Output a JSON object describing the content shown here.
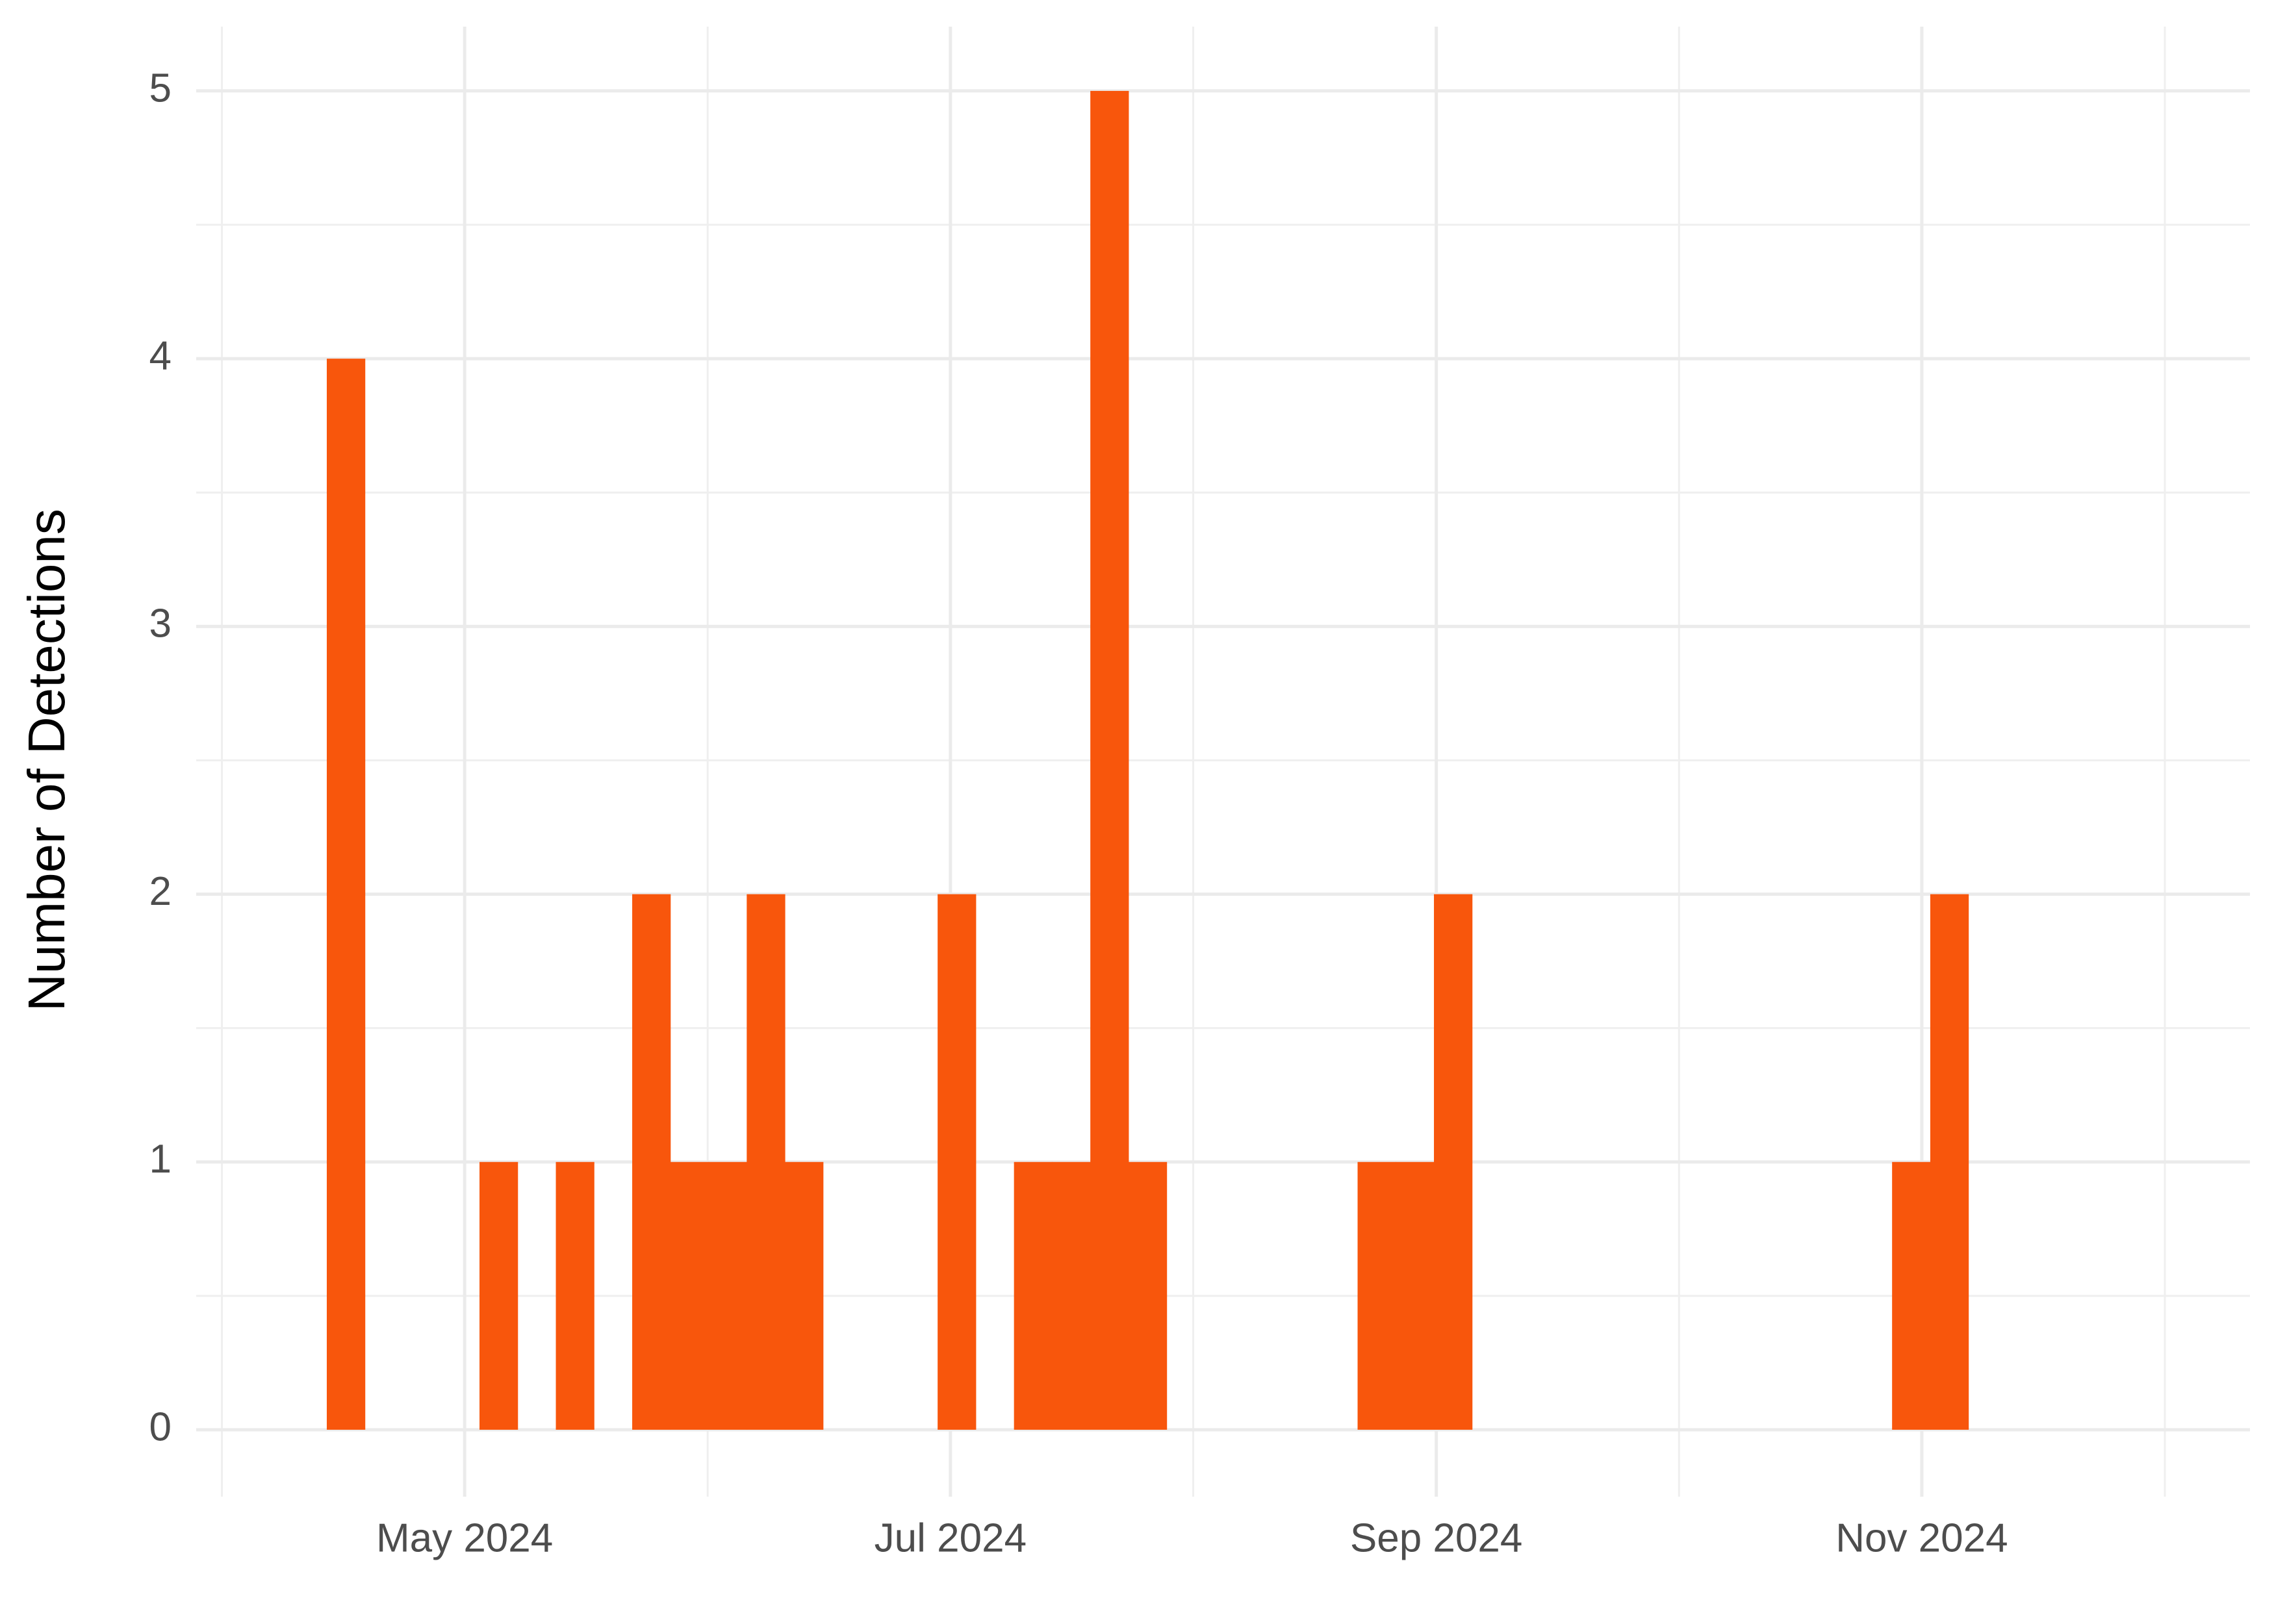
{
  "chart_data": {
    "type": "histogram",
    "y_label": "Number of Detections",
    "bins": [
      2024.286,
      2024.2991,
      2024.3122,
      2024.3253,
      2024.3384,
      2024.3515,
      2024.3646,
      2024.3777,
      2024.3908,
      2024.4039,
      2024.417,
      2024.4301,
      2024.4432,
      2024.4563,
      2024.4694,
      2024.4825,
      2024.4956,
      2024.5087,
      2024.5218,
      2024.5349,
      2024.548,
      2024.5611,
      2024.5742,
      2024.5873,
      2024.6004,
      2024.6135,
      2024.6266,
      2024.6397,
      2024.6528,
      2024.6659,
      2024.679,
      2024.6921,
      2024.7052,
      2024.7183,
      2024.7314,
      2024.7445,
      2024.7576,
      2024.7707,
      2024.7838,
      2024.7969,
      2024.81,
      2024.8231,
      2024.8362,
      2024.8493
    ],
    "values": [
      4,
      0,
      0,
      0,
      1,
      0,
      1,
      0,
      2,
      1,
      1,
      2,
      1,
      0,
      0,
      0,
      2,
      0,
      1,
      1,
      5,
      1,
      0,
      0,
      0,
      0,
      0,
      1,
      1,
      2,
      0,
      0,
      0,
      0,
      0,
      0,
      0,
      0,
      0,
      0,
      0,
      1,
      2
    ],
    "color": "#f8560c",
    "xlim": [
      2024.2412,
      2024.9459
    ],
    "xticks": [
      {
        "value": 2024.3333,
        "label": "May 2024"
      },
      {
        "value": 2024.5,
        "label": "Jul 2024"
      },
      {
        "value": 2024.6667,
        "label": "Sep 2024"
      },
      {
        "value": 2024.8333,
        "label": "Nov 2024"
      }
    ],
    "xminor": [
      2024.25,
      2024.4167,
      2024.5833,
      2024.75,
      2024.9167
    ],
    "ylim": [
      -0.25,
      5.24
    ],
    "yticks": [
      0,
      1,
      2,
      3,
      4,
      5
    ],
    "yminor": [
      0.5,
      1.5,
      2.5,
      3.5,
      4.5
    ],
    "grid": true
  }
}
